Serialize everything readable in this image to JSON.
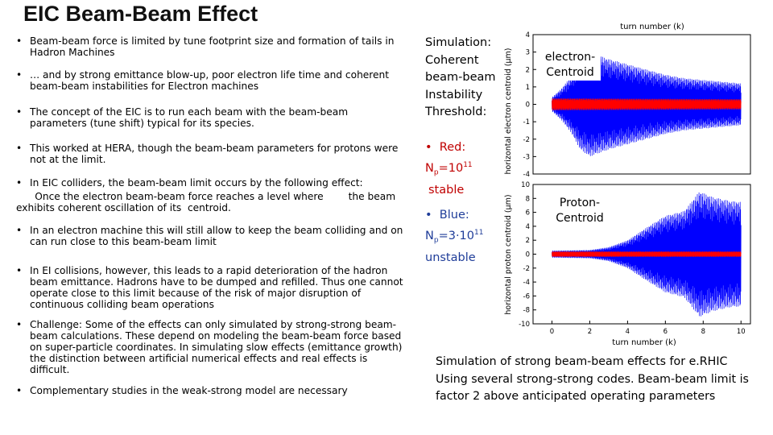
{
  "title": "EIC Beam-Beam Effect",
  "bullets": [
    {
      "bullet": "•",
      "text": "Beam-beam force is limited by tune footprint size and formation of tails in Hadron Machines"
    },
    {
      "bullet": "•",
      "text": "… and by strong emittance blow-up, poor electron life time and coherent beam-beam instabilities for Electron machines"
    },
    {
      "bullet": "•",
      "text": "The concept of the EIC is to run each beam with the beam-beam parameters (tune shift) typical for its species."
    },
    {
      "bullet": "•",
      "text": "This worked at HERA, though the beam-beam parameters for protons were not at the limit."
    },
    {
      "bullet": "•",
      "text": "In EIC colliders, the beam-beam limit occurs by the following effect:"
    },
    {
      "bullet": "",
      "text": "      Once the electron beam-beam force reaches a level where        the beam exhibits coherent oscillation of its  centroid."
    },
    {
      "bullet": "•",
      "text": "In an electron machine this will still allow to keep the beam colliding and on can run close to this beam-beam limit"
    },
    {
      "bullet": "•",
      "text": "In EI collisions, however, this leads to a rapid deterioration of the hadron beam emittance. Hadrons have to be dumped and refilled. Thus one cannot operate close to this limit because of the risk of major disruption of continuous colliding beam operations"
    },
    {
      "bullet": "•",
      "text": "Challenge: Some of the effects can only simulated by strong-strong beam-beam calculations. These depend on modeling the beam-beam force based on super-particle coordinates. In simulating slow effects (emittance growth) the distinction between artificial numerical effects and real effects is difficult."
    },
    {
      "bullet": "•",
      "text": "Complementary studies in the weak-strong model are necessary"
    }
  ],
  "simulation_box": {
    "heading_lines": [
      "Simulation:",
      "Coherent",
      "beam-beam",
      "Instability",
      "Threshold:"
    ],
    "red_bullet": "•",
    "red_label": "Red:",
    "red_np_prefix": "N",
    "red_np_sub": "p",
    "red_np_value": "=10",
    "red_np_sup": "11",
    "red_state": "stable",
    "blue_bullet": "•",
    "blue_label": "Blue:",
    "blue_np_prefix": "N",
    "blue_np_sub": "p",
    "blue_np_value": "=3·10",
    "blue_np_sup": "11",
    "blue_state": "unstable"
  },
  "caption_lines": [
    "Simulation of strong beam-beam effects for e.RHIC",
    "Using several strong-strong codes. Beam-beam limit is",
    "factor 2 above anticipated operating parameters"
  ],
  "colors": {
    "red": "#c00000",
    "blue": "#1f3d99",
    "plot_red": "#ff0000",
    "plot_blue": "#0000ff"
  },
  "chart_data": [
    {
      "type": "line",
      "panel_label": "electron-Centroid",
      "xlabel": "turn number (k)",
      "ylabel": "horizontal electron centroid (μm)",
      "xlim": [
        -1,
        10.5
      ],
      "ylim": [
        -4,
        4
      ],
      "xticks": [],
      "yticks": [
        -4,
        -3,
        -2,
        -1,
        0,
        1,
        2,
        3,
        4
      ],
      "series": [
        {
          "color": "#0000ff",
          "description_points": [
            {
              "x": 0,
              "amplitude": 0.4
            },
            {
              "x": 0.5,
              "amplitude": 0.9
            },
            {
              "x": 1,
              "amplitude": 1.6
            },
            {
              "x": 1.5,
              "amplitude": 2.6
            },
            {
              "x": 2,
              "amplitude": 3.0
            },
            {
              "x": 2.5,
              "amplitude": 2.8
            },
            {
              "x": 3,
              "amplitude": 2.6
            },
            {
              "x": 4,
              "amplitude": 2.3
            },
            {
              "x": 5,
              "amplitude": 2.0
            },
            {
              "x": 6,
              "amplitude": 1.7
            },
            {
              "x": 7,
              "amplitude": 1.5
            },
            {
              "x": 8,
              "amplitude": 1.4
            },
            {
              "x": 9,
              "amplitude": 1.3
            },
            {
              "x": 10,
              "amplitude": 1.2
            }
          ]
        },
        {
          "color": "#ff0000",
          "description_points": [
            {
              "x": 0,
              "amplitude": 0.35
            },
            {
              "x": 10,
              "amplitude": 0.3
            }
          ]
        }
      ]
    },
    {
      "type": "line",
      "panel_label": "Proton-Centroid",
      "xlabel": "turn number (k)",
      "ylabel": "horizontal proton centroid (μm)",
      "xlim": [
        -1,
        10.5
      ],
      "ylim": [
        -10,
        10
      ],
      "xticks": [
        0,
        2,
        4,
        6,
        8,
        10
      ],
      "yticks": [
        -10,
        -8,
        -6,
        -4,
        -2,
        0,
        2,
        4,
        6,
        8,
        10
      ],
      "series": [
        {
          "color": "#0000ff",
          "description_points": [
            {
              "x": 0,
              "amplitude": 0.5
            },
            {
              "x": 2,
              "amplitude": 0.6
            },
            {
              "x": 3,
              "amplitude": 1.0
            },
            {
              "x": 4,
              "amplitude": 2.0
            },
            {
              "x": 5,
              "amplitude": 3.8
            },
            {
              "x": 6,
              "amplitude": 5.5
            },
            {
              "x": 7,
              "amplitude": 6.2
            },
            {
              "x": 7.8,
              "amplitude": 9.0
            },
            {
              "x": 8.5,
              "amplitude": 8.2
            },
            {
              "x": 9.5,
              "amplitude": 7.6
            },
            {
              "x": 10,
              "amplitude": 7.5
            }
          ]
        },
        {
          "color": "#ff0000",
          "description_points": [
            {
              "x": 0,
              "amplitude": 0.4
            },
            {
              "x": 10,
              "amplitude": 0.4
            }
          ]
        }
      ]
    }
  ]
}
